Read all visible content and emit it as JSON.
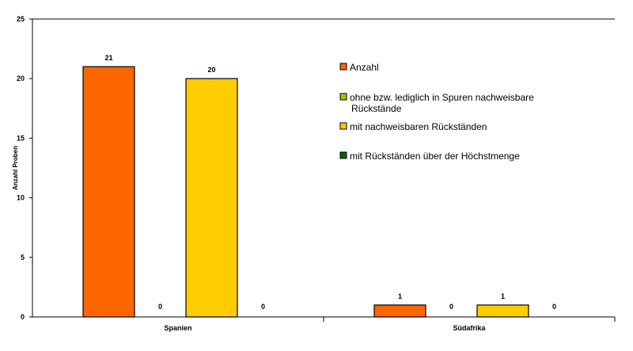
{
  "chart_data": {
    "type": "bar",
    "categories": [
      "Spanien",
      "Südafrika"
    ],
    "ylabel": "Anzahl Proben",
    "xlabel": "",
    "ylim": [
      0,
      25
    ],
    "yticks": [
      "0",
      "5",
      "10",
      "15",
      "20",
      "25"
    ],
    "grid": false,
    "legend_position": "right",
    "series": [
      {
        "name": "Anzahl",
        "values": [
          21,
          1
        ],
        "color": "#FF6600"
      },
      {
        "name": "ohne bzw. lediglich in Spuren nachweisbare Rückstände",
        "name_lines": [
          "ohne bzw. lediglich in Spuren nachweisbare",
          "Rückstände"
        ],
        "values": [
          0,
          0
        ],
        "color": "#99CC00"
      },
      {
        "name": "mit nachweisbaren Rückständen",
        "values": [
          20,
          1
        ],
        "color": "#FFCC00"
      },
      {
        "name": "mit Rückständen über der Höchstmenge",
        "values": [
          0,
          0
        ],
        "color": "#006600"
      }
    ]
  }
}
